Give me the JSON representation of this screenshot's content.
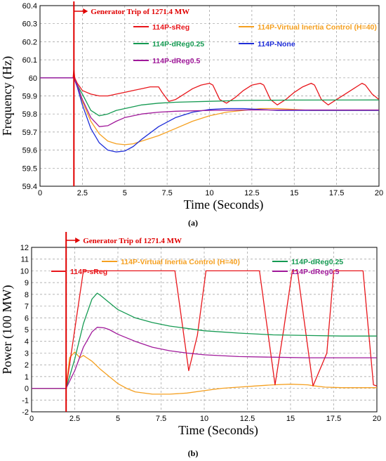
{
  "chart_data": [
    {
      "type": "line",
      "panel_label": "(a)",
      "xlabel": "Time (Seconds)",
      "ylabel": "Frequency (Hz)",
      "xlim": [
        0,
        20
      ],
      "ylim": [
        59.4,
        60.4
      ],
      "xticks": [
        0,
        2.5,
        5,
        7.5,
        10,
        12.5,
        15,
        17.5,
        20
      ],
      "yticks": [
        59.4,
        59.5,
        59.6,
        59.7,
        59.8,
        59.9,
        60,
        60.1,
        60.2,
        60.3,
        60.4
      ],
      "grid": true,
      "legend_position": "top",
      "event": {
        "x": 2,
        "label": "Generator Trip of 1271.4 MW"
      },
      "series": [
        {
          "name": "114P-sReg",
          "color": "#e8161b",
          "x": [
            0,
            1.95,
            2.0,
            2.05,
            2.2,
            2.5,
            3.0,
            3.5,
            4.0,
            4.5,
            5.0,
            5.5,
            6.0,
            6.5,
            7.0,
            7.2,
            7.6,
            8.0,
            8.5,
            9.0,
            9.5,
            10.0,
            10.2,
            10.6,
            11.0,
            11.5,
            12.0,
            12.5,
            13.0,
            13.2,
            13.6,
            14.0,
            14.5,
            15.0,
            15.5,
            16.0,
            16.2,
            16.6,
            17.0,
            17.5,
            18.0,
            18.5,
            19.0,
            19.2,
            19.6,
            20.0
          ],
          "y": [
            60.0,
            60.0,
            60.05,
            60.0,
            59.97,
            59.93,
            59.91,
            59.9,
            59.9,
            59.91,
            59.92,
            59.93,
            59.94,
            59.95,
            59.95,
            59.92,
            59.87,
            59.88,
            59.91,
            59.94,
            59.96,
            59.97,
            59.96,
            59.88,
            59.86,
            59.89,
            59.93,
            59.96,
            59.97,
            59.96,
            59.88,
            59.85,
            59.88,
            59.92,
            59.95,
            59.97,
            59.96,
            59.88,
            59.85,
            59.88,
            59.91,
            59.94,
            59.97,
            59.96,
            59.91,
            59.88
          ]
        },
        {
          "name": "114P-Virtual Inertia Control (H=40)",
          "color": "#f5a020",
          "x": [
            0,
            1.95,
            2.0,
            2.2,
            2.5,
            3.0,
            3.5,
            4.0,
            4.5,
            5.0,
            5.5,
            6.0,
            7.0,
            8.0,
            9.0,
            10.0,
            11.0,
            12.0,
            13.0,
            14.0,
            15.0,
            16.0,
            17.0,
            18.0,
            20.0
          ],
          "y": [
            60.0,
            60.0,
            60.0,
            59.95,
            59.87,
            59.76,
            59.69,
            59.65,
            59.635,
            59.63,
            59.635,
            59.65,
            59.68,
            59.72,
            59.76,
            59.79,
            59.81,
            59.82,
            59.83,
            59.83,
            59.825,
            59.82,
            59.82,
            59.82,
            59.82
          ]
        },
        {
          "name": "114P-dReg0.25",
          "color": "#159a52",
          "x": [
            0,
            1.95,
            2.0,
            2.2,
            2.5,
            3.0,
            3.5,
            4.0,
            4.5,
            5.0,
            6.0,
            7.0,
            8.0,
            10.0,
            12.0,
            15.0,
            20.0
          ],
          "y": [
            60.0,
            60.0,
            60.0,
            59.96,
            59.91,
            59.82,
            59.79,
            59.8,
            59.82,
            59.83,
            59.85,
            59.86,
            59.865,
            59.87,
            59.875,
            59.877,
            59.878
          ]
        },
        {
          "name": "114P-None",
          "color": "#1f2ed8",
          "x": [
            0,
            1.95,
            2.0,
            2.2,
            2.5,
            3.0,
            3.5,
            4.0,
            4.5,
            5.0,
            5.5,
            6.0,
            7.0,
            8.0,
            9.0,
            10.0,
            11.0,
            12.0,
            14.0,
            16.0,
            20.0
          ],
          "y": [
            60.0,
            60.0,
            60.0,
            59.95,
            59.85,
            59.72,
            59.64,
            59.6,
            59.59,
            59.595,
            59.62,
            59.66,
            59.73,
            59.78,
            59.81,
            59.825,
            59.83,
            59.83,
            59.82,
            59.82,
            59.82
          ]
        },
        {
          "name": "114P-dReg0.5",
          "color": "#a0189a",
          "x": [
            0,
            1.95,
            2.0,
            2.2,
            2.5,
            3.0,
            3.5,
            4.0,
            4.5,
            5.0,
            6.0,
            7.0,
            8.0,
            10.0,
            12.0,
            15.0,
            20.0
          ],
          "y": [
            60.0,
            60.0,
            60.0,
            59.96,
            59.88,
            59.78,
            59.73,
            59.735,
            59.76,
            59.78,
            59.8,
            59.81,
            59.815,
            59.82,
            59.822,
            59.822,
            59.822
          ]
        }
      ]
    },
    {
      "type": "line",
      "panel_label": "(b)",
      "xlabel": "Time (Seconds)",
      "ylabel": "Power (100 MW)",
      "xlim": [
        0,
        20
      ],
      "ylim": [
        -2,
        12
      ],
      "xticks": [
        0,
        2.5,
        5,
        7.5,
        10,
        12.5,
        15,
        17.5,
        20
      ],
      "yticks": [
        -2,
        -1,
        0,
        1,
        2,
        3,
        4,
        5,
        6,
        7,
        8,
        9,
        10,
        11,
        12
      ],
      "grid": true,
      "legend_position": "top",
      "event": {
        "x": 2,
        "label": "Generator Trip of 1271.4 MW"
      },
      "series": [
        {
          "name": "114P-Virtual Inertia Control (H=40)",
          "color": "#f5a020",
          "x": [
            0,
            1.95,
            2.0,
            2.2,
            2.5,
            2.8,
            3.0,
            3.5,
            4.0,
            4.5,
            5.0,
            5.5,
            6.0,
            7.0,
            8.0,
            9.0,
            10.0,
            10.5,
            11.0,
            12.0,
            13.0,
            14.0,
            15.0,
            16.0,
            16.4,
            17.0,
            18.0,
            20.0
          ],
          "y": [
            0,
            0,
            0,
            2.6,
            3.1,
            2.6,
            2.8,
            2.3,
            1.6,
            1.0,
            0.4,
            0.0,
            -0.3,
            -0.5,
            -0.5,
            -0.4,
            -0.2,
            -0.1,
            0.0,
            0.1,
            0.2,
            0.3,
            0.35,
            0.3,
            0.2,
            0.1,
            0.05,
            0.05
          ]
        },
        {
          "name": "114P-sReg",
          "color": "#e8161b",
          "x": [
            0,
            1.95,
            2.0,
            3.0,
            8.3,
            9.1,
            9.6,
            10.1,
            10.4,
            13.2,
            14.1,
            14.6,
            15.1,
            15.4,
            16.3,
            17.1,
            17.5,
            17.8,
            18.2,
            19.2,
            19.8,
            20.0
          ],
          "y": [
            0,
            0,
            0,
            10,
            10,
            1.5,
            4.5,
            10,
            10,
            10,
            0.3,
            5.0,
            10,
            10,
            0.2,
            3.0,
            10,
            10,
            10,
            10,
            0.3,
            0.2
          ]
        },
        {
          "name": "114P-dReg0.25",
          "color": "#159a52",
          "x": [
            0,
            1.95,
            2.0,
            2.5,
            3.0,
            3.5,
            3.8,
            4.0,
            4.5,
            5.0,
            6.0,
            7.0,
            8.0,
            9.0,
            10.0,
            12.0,
            14.0,
            16.0,
            18.0,
            20.0
          ],
          "y": [
            0,
            0,
            0,
            2.5,
            5.5,
            7.6,
            8.1,
            7.9,
            7.3,
            6.7,
            6.0,
            5.6,
            5.3,
            5.1,
            4.9,
            4.7,
            4.55,
            4.5,
            4.45,
            4.45
          ]
        },
        {
          "name": "114P-dReg0.5",
          "color": "#a0189a",
          "x": [
            0,
            1.95,
            2.0,
            2.5,
            3.0,
            3.5,
            3.8,
            4.2,
            4.5,
            5.0,
            6.0,
            7.0,
            8.0,
            9.0,
            10.0,
            12.0,
            14.0,
            16.0,
            18.0,
            20.0
          ],
          "y": [
            0,
            0,
            0,
            1.5,
            3.5,
            4.8,
            5.2,
            5.15,
            5.0,
            4.6,
            4.0,
            3.5,
            3.2,
            3.0,
            2.85,
            2.7,
            2.65,
            2.6,
            2.6,
            2.6
          ]
        }
      ]
    }
  ]
}
